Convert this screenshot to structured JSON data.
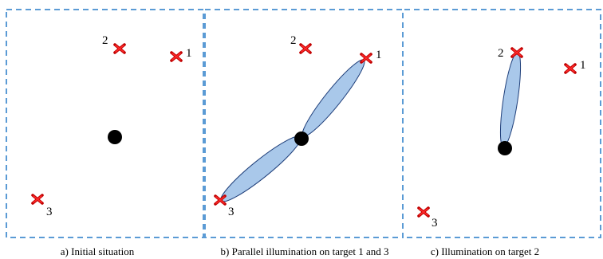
{
  "panels": [
    {
      "id": "a",
      "caption": "a) Initial situation",
      "targets": [
        {
          "label": "2"
        },
        {
          "label": "1"
        },
        {
          "label": "3"
        }
      ]
    },
    {
      "id": "b",
      "caption": "b) Parallel illumination on target 1 and 3",
      "targets": [
        {
          "label": "2"
        },
        {
          "label": "1"
        },
        {
          "label": "3"
        }
      ]
    },
    {
      "id": "c",
      "caption": "c) Illumination on target 2",
      "targets": [
        {
          "label": "2"
        },
        {
          "label": "1"
        },
        {
          "label": "3"
        }
      ]
    }
  ],
  "colors": {
    "frame": "#5b9bd5",
    "beam_fill": "#a9c8ea",
    "beam_outline": "#1f3f7a",
    "target_marker": "#c00000"
  },
  "icons": {
    "target": "red-x-marker-icon",
    "radar": "black-dot-radar-icon"
  }
}
